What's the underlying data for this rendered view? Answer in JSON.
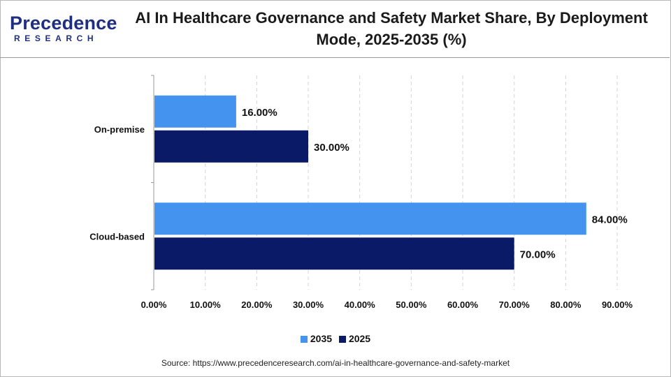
{
  "header": {
    "logo_main": "Precedence",
    "logo_sub": "RESEARCH",
    "title": "AI In Healthcare Governance and Safety Market Share, By Deployment Mode, 2025-2035 (%)"
  },
  "colors": {
    "brand": "#1f2f80",
    "series_2035": "#4493ee",
    "series_2025": "#0b1a66"
  },
  "chart_data": {
    "type": "bar",
    "orientation": "horizontal",
    "title": "AI In Healthcare Governance and Safety Market Share, By Deployment Mode, 2025-2035 (%)",
    "categories": [
      "On-premise",
      "Cloud-based"
    ],
    "series": [
      {
        "name": "2035",
        "color": "#4493ee",
        "values": [
          16.0,
          84.0
        ],
        "labels": [
          "16.00%",
          "84.00%"
        ]
      },
      {
        "name": "2025",
        "color": "#0b1a66",
        "values": [
          30.0,
          70.0
        ],
        "labels": [
          "30.00%",
          "70.00%"
        ]
      }
    ],
    "xlim": [
      0,
      90
    ],
    "xticks": [
      "0.00%",
      "10.00%",
      "20.00%",
      "30.00%",
      "40.00%",
      "50.00%",
      "60.00%",
      "70.00%",
      "80.00%",
      "90.00%"
    ],
    "xlabel": "",
    "ylabel": "",
    "grid": "vertical dashed",
    "legend_position": "bottom"
  },
  "legend": [
    {
      "label": "2035",
      "color": "#4493ee"
    },
    {
      "label": "2025",
      "color": "#0b1a66"
    }
  ],
  "footer": {
    "source": "Source: https://www.precedenceresearch.com/ai-in-healthcare-governance-and-safety-market"
  }
}
